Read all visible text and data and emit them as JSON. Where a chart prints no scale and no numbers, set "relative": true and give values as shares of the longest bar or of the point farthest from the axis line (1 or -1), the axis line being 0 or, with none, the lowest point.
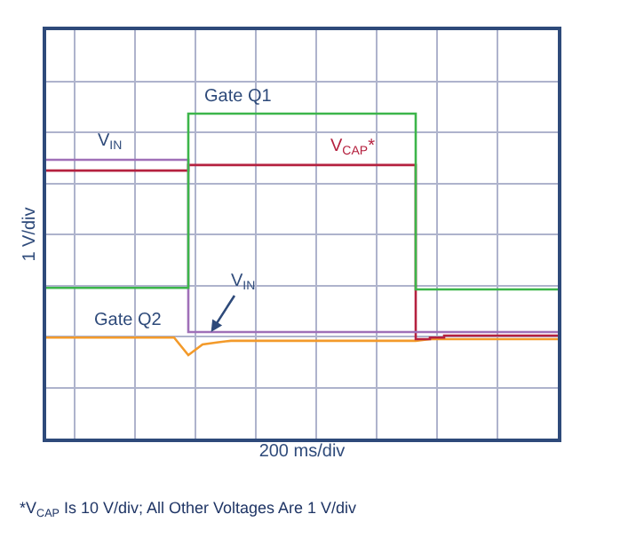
{
  "chart_data": {
    "type": "step",
    "relative": true,
    "grid": true,
    "legend": false,
    "marker": "none",
    "line_style": "solid",
    "xlabel": "200 ms/div",
    "ylabel": "1 V/div",
    "categories": [
      null,
      null,
      null,
      null,
      null,
      null,
      null,
      null,
      null,
      null,
      null,
      null,
      null,
      null,
      null,
      null,
      null,
      null,
      null,
      null,
      null,
      null,
      null,
      null,
      null,
      null,
      null,
      null,
      null,
      null,
      null,
      null,
      null,
      null,
      null,
      null,
      null
    ],
    "series": [
      {
        "name": "Gate Q1",
        "color": "#3cb54a",
        "values": [
          0.464,
          0.464,
          0.464,
          0.464,
          0.464,
          0.464,
          0.464,
          0.464,
          0.464,
          0.464,
          1,
          1,
          1,
          1,
          1,
          1,
          1,
          1,
          1,
          1,
          1,
          1,
          1,
          1,
          1,
          1,
          0.459,
          0.459,
          0.459,
          0.459,
          0.459,
          0.459,
          0.459,
          0.459,
          0.459,
          0.459,
          0.459
        ]
      },
      {
        "name": "V$_{IN}$",
        "color": "#a070b8",
        "values": [
          0.858,
          0.858,
          0.858,
          0.858,
          0.858,
          0.858,
          0.858,
          0.858,
          0.858,
          0.858,
          0.328,
          0.328,
          0.328,
          0.328,
          0.328,
          0.328,
          0.328,
          0.328,
          0.328,
          0.328,
          0.328,
          0.328,
          0.328,
          0.328,
          0.328,
          0.328,
          0.328,
          0.328,
          0.328,
          0.328,
          0.328,
          0.328,
          0.328,
          0.328,
          0.328,
          0.328,
          0.328
        ]
      },
      {
        "name": "V$_{CAP}$*",
        "color": "#b5213f",
        "values": [
          0.825,
          0.825,
          0.825,
          0.825,
          0.825,
          0.825,
          0.825,
          0.825,
          0.825,
          0.825,
          0.842,
          0.842,
          0.842,
          0.842,
          0.842,
          0.842,
          0.842,
          0.842,
          0.842,
          0.842,
          0.842,
          0.842,
          0.842,
          0.842,
          0.842,
          0.842,
          0.306,
          0.311,
          0.317,
          0.317,
          0.317,
          0.317,
          0.317,
          0.317,
          0.317,
          0.317,
          0.317
        ]
      },
      {
        "name": "Gate Q2",
        "color": "#f39a2a",
        "type": "line",
        "values": [
          0.311,
          0.311,
          0.311,
          0.311,
          0.311,
          0.311,
          0.311,
          0.311,
          0.311,
          0.311,
          0.257,
          0.29,
          0.296,
          0.301,
          0.301,
          0.301,
          0.301,
          0.301,
          0.301,
          0.301,
          0.301,
          0.301,
          0.301,
          0.301,
          0.301,
          0.301,
          0.301,
          0.306,
          0.306,
          0.306,
          0.306,
          0.306,
          0.306,
          0.306,
          0.306,
          0.306,
          0.306
        ]
      }
    ],
    "annotations": [
      {
        "text": "V$_{IN}$",
        "y": 0.328
      },
      "*V$_{CAP}$ Is 10 V/div; All Other Voltages Are 1 V/div"
    ]
  }
}
